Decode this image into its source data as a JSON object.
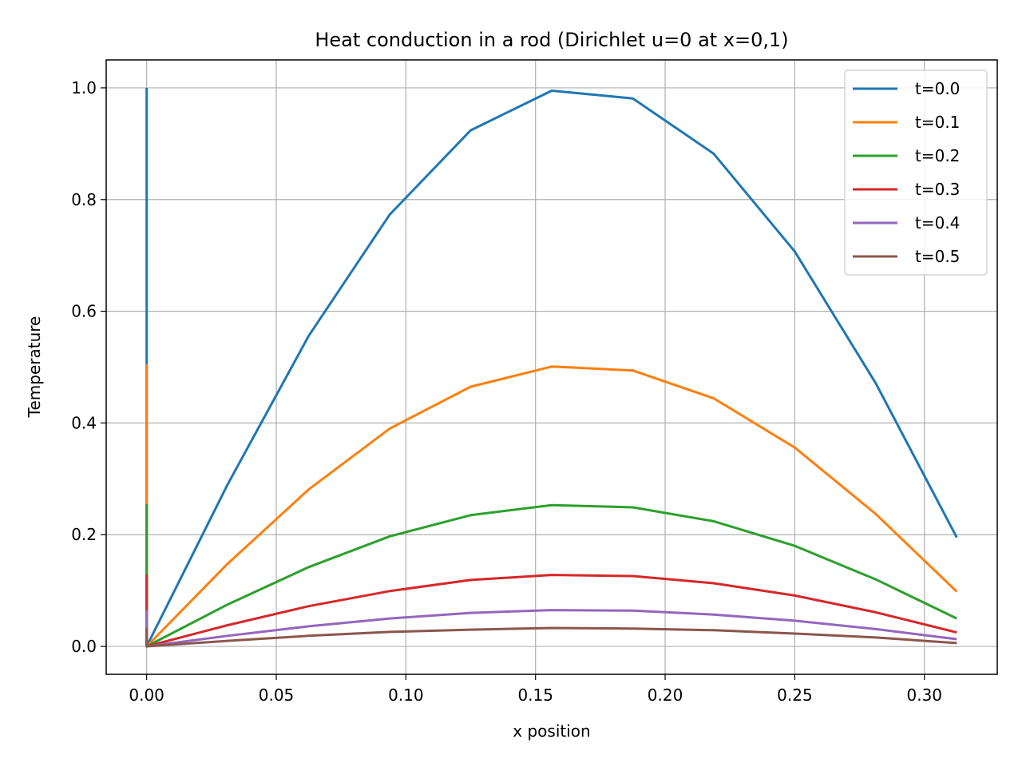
{
  "chart_data": {
    "type": "line",
    "title": "Heat conduction in a rod (Dirichlet u=0 at x=0,1)",
    "xlabel": "x position",
    "ylabel": "Temperature",
    "xlim": [
      -0.0156,
      0.3281
    ],
    "ylim": [
      -0.05,
      1.05
    ],
    "xticks": [
      0.0,
      0.05,
      0.1,
      0.15,
      0.2,
      0.25,
      0.3
    ],
    "xtick_labels": [
      "0.00",
      "0.05",
      "0.10",
      "0.15",
      "0.20",
      "0.25",
      "0.30"
    ],
    "yticks": [
      0.0,
      0.2,
      0.4,
      0.6,
      0.8,
      1.0
    ],
    "ytick_labels": [
      "0.0",
      "0.2",
      "0.4",
      "0.6",
      "0.8",
      "1.0"
    ],
    "grid": true,
    "legend_position": "top-right",
    "x": [
      0.0,
      0.03125,
      0.0625,
      0.09375,
      0.125,
      0.15625,
      0.1875,
      0.21875,
      0.25,
      0.28125,
      0.3125
    ],
    "series": [
      {
        "name": "t=0.0",
        "color": "#1f77b4",
        "vertical_segment": [
          0.0,
          1.0
        ],
        "values": [
          0.0,
          0.29,
          0.556,
          0.773,
          0.924,
          0.995,
          0.981,
          0.882,
          0.707,
          0.471,
          0.195
        ]
      },
      {
        "name": "t=0.1",
        "color": "#ff7f0e",
        "vertical_segment": [
          0.0,
          0.505
        ],
        "values": [
          0.0,
          0.148,
          0.281,
          0.39,
          0.465,
          0.501,
          0.494,
          0.444,
          0.356,
          0.237,
          0.098
        ]
      },
      {
        "name": "t=0.2",
        "color": "#2ca02c",
        "vertical_segment": [
          0.0,
          0.255
        ],
        "values": [
          0.0,
          0.075,
          0.142,
          0.197,
          0.235,
          0.253,
          0.249,
          0.224,
          0.18,
          0.12,
          0.05
        ]
      },
      {
        "name": "t=0.3",
        "color": "#d62728",
        "vertical_segment": [
          0.0,
          0.129
        ],
        "values": [
          0.0,
          0.038,
          0.072,
          0.099,
          0.119,
          0.128,
          0.126,
          0.113,
          0.091,
          0.061,
          0.025
        ]
      },
      {
        "name": "t=0.4",
        "color": "#9467bd",
        "vertical_segment": [
          0.0,
          0.065
        ],
        "values": [
          0.0,
          0.019,
          0.036,
          0.05,
          0.06,
          0.065,
          0.064,
          0.057,
          0.046,
          0.031,
          0.013
        ]
      },
      {
        "name": "t=0.5",
        "color": "#8c564b",
        "vertical_segment": [
          0.0,
          0.033
        ],
        "values": [
          0.0,
          0.01,
          0.019,
          0.026,
          0.03,
          0.033,
          0.032,
          0.029,
          0.023,
          0.016,
          0.006
        ]
      }
    ]
  }
}
